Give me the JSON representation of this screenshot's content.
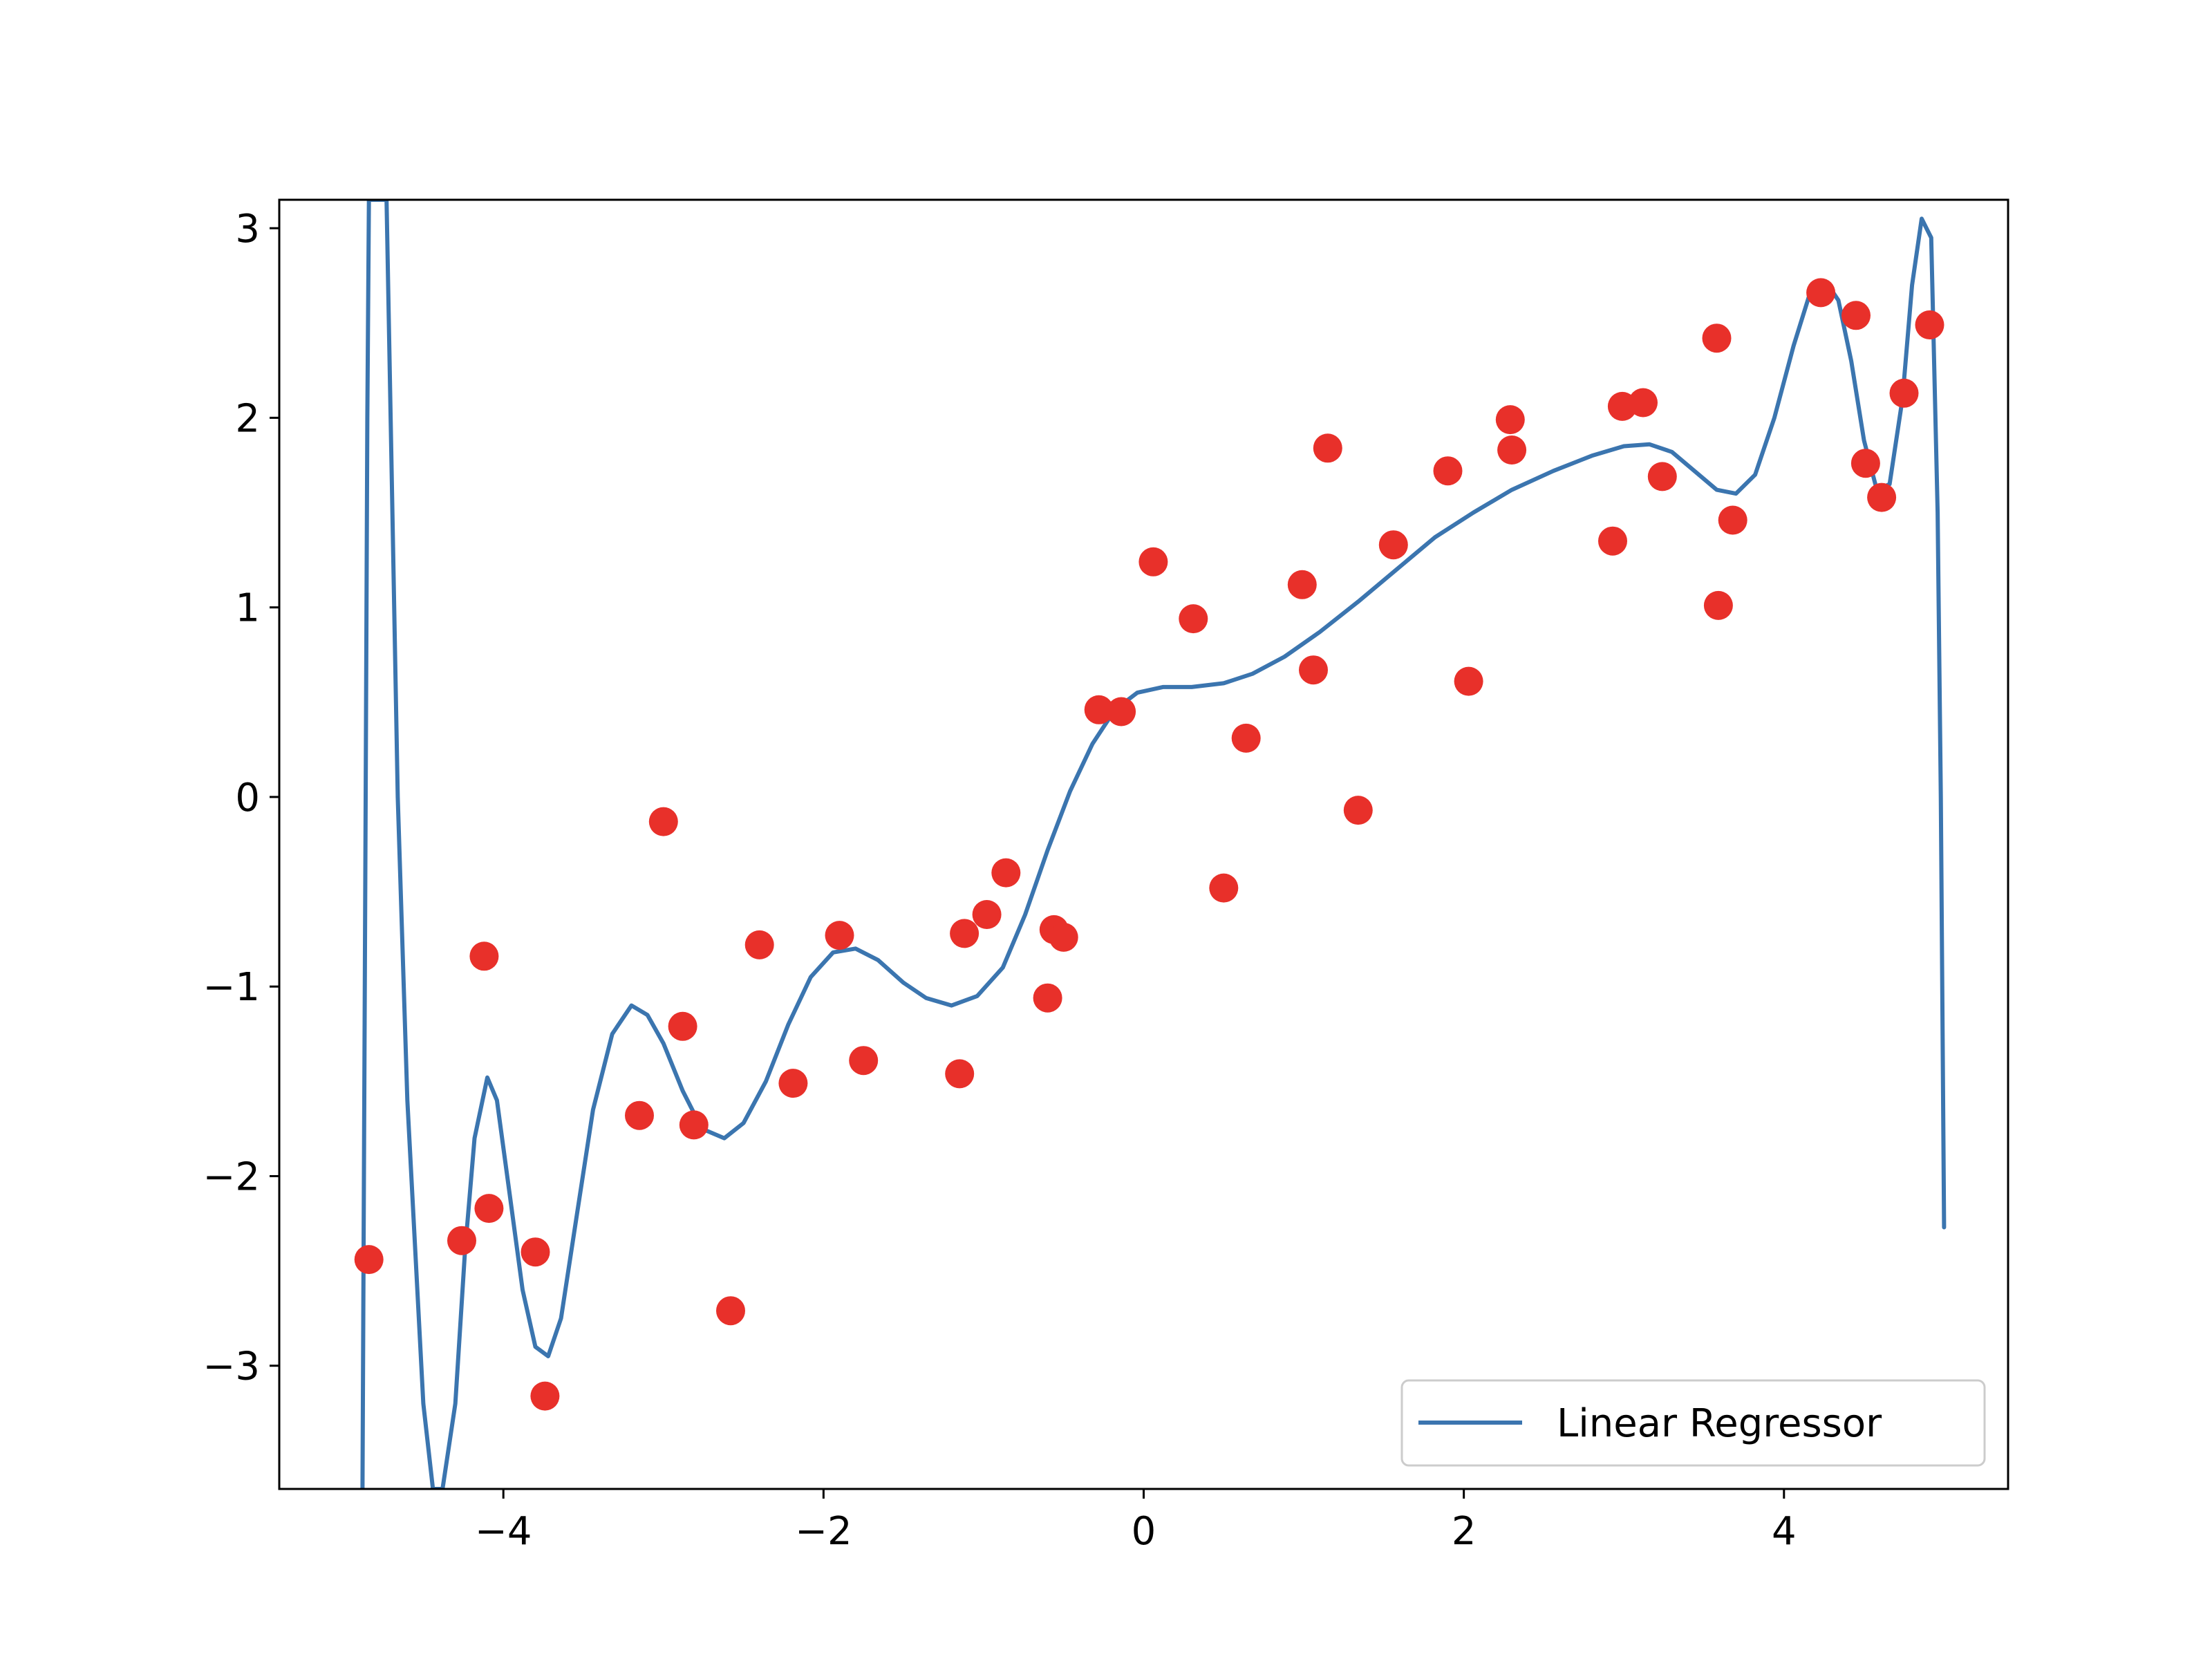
{
  "chart_data": {
    "type": "scatter",
    "title": "",
    "xlabel": "",
    "ylabel": "",
    "xlim": [
      -5.4,
      5.4
    ],
    "ylim": [
      -3.65,
      3.15
    ],
    "grid": false,
    "legend_position": "lower-right",
    "xticks": [
      {
        "value": -4,
        "label": "−4"
      },
      {
        "value": -2,
        "label": "−2"
      },
      {
        "value": 0,
        "label": "0"
      },
      {
        "value": 2,
        "label": "2"
      },
      {
        "value": 4,
        "label": "4"
      }
    ],
    "yticks": [
      {
        "value": 3,
        "label": "3"
      },
      {
        "value": 2,
        "label": "2"
      },
      {
        "value": 1,
        "label": "1"
      },
      {
        "value": 0,
        "label": "0"
      },
      {
        "value": -1,
        "label": "−1"
      },
      {
        "value": -2,
        "label": "−2"
      },
      {
        "value": -3,
        "label": "−3"
      }
    ],
    "series": [
      {
        "name": "Linear Regressor",
        "type": "line",
        "color": "#3b75af",
        "points": [
          [
            -4.88,
            -3.65
          ],
          [
            -4.86,
            0.0
          ],
          [
            -4.85,
            2.0
          ],
          [
            -4.84,
            3.15
          ],
          [
            -4.73,
            3.15
          ],
          [
            -4.66,
            0.0
          ],
          [
            -4.6,
            -1.6
          ],
          [
            -4.5,
            -3.2
          ],
          [
            -4.44,
            -3.65
          ],
          [
            -4.38,
            -3.65
          ],
          [
            -4.3,
            -3.2
          ],
          [
            -4.24,
            -2.4
          ],
          [
            -4.18,
            -1.8
          ],
          [
            -4.1,
            -1.48
          ],
          [
            -4.04,
            -1.6
          ],
          [
            -3.96,
            -2.1
          ],
          [
            -3.88,
            -2.6
          ],
          [
            -3.8,
            -2.9
          ],
          [
            -3.72,
            -2.95
          ],
          [
            -3.64,
            -2.75
          ],
          [
            -3.54,
            -2.2
          ],
          [
            -3.44,
            -1.65
          ],
          [
            -3.32,
            -1.25
          ],
          [
            -3.2,
            -1.1
          ],
          [
            -3.1,
            -1.15
          ],
          [
            -3.0,
            -1.3
          ],
          [
            -2.88,
            -1.55
          ],
          [
            -2.76,
            -1.75
          ],
          [
            -2.62,
            -1.8
          ],
          [
            -2.5,
            -1.72
          ],
          [
            -2.36,
            -1.5
          ],
          [
            -2.22,
            -1.2
          ],
          [
            -2.08,
            -0.95
          ],
          [
            -1.94,
            -0.82
          ],
          [
            -1.8,
            -0.8
          ],
          [
            -1.66,
            -0.86
          ],
          [
            -1.5,
            -0.98
          ],
          [
            -1.36,
            -1.06
          ],
          [
            -1.2,
            -1.1
          ],
          [
            -1.04,
            -1.05
          ],
          [
            -0.88,
            -0.9
          ],
          [
            -0.74,
            -0.62
          ],
          [
            -0.6,
            -0.28
          ],
          [
            -0.46,
            0.03
          ],
          [
            -0.32,
            0.28
          ],
          [
            -0.18,
            0.46
          ],
          [
            -0.04,
            0.55
          ],
          [
            0.12,
            0.58
          ],
          [
            0.3,
            0.58
          ],
          [
            0.5,
            0.6
          ],
          [
            0.68,
            0.65
          ],
          [
            0.88,
            0.74
          ],
          [
            1.1,
            0.87
          ],
          [
            1.34,
            1.03
          ],
          [
            1.58,
            1.2
          ],
          [
            1.82,
            1.37
          ],
          [
            2.06,
            1.5
          ],
          [
            2.3,
            1.62
          ],
          [
            2.56,
            1.72
          ],
          [
            2.8,
            1.8
          ],
          [
            3.0,
            1.85
          ],
          [
            3.16,
            1.86
          ],
          [
            3.3,
            1.82
          ],
          [
            3.44,
            1.72
          ],
          [
            3.58,
            1.62
          ],
          [
            3.7,
            1.6
          ],
          [
            3.82,
            1.7
          ],
          [
            3.94,
            2.0
          ],
          [
            4.06,
            2.38
          ],
          [
            4.16,
            2.65
          ],
          [
            4.26,
            2.72
          ],
          [
            4.34,
            2.62
          ],
          [
            4.42,
            2.3
          ],
          [
            4.5,
            1.88
          ],
          [
            4.58,
            1.62
          ],
          [
            4.66,
            1.65
          ],
          [
            4.74,
            2.1
          ],
          [
            4.8,
            2.7
          ],
          [
            4.86,
            3.05
          ],
          [
            4.92,
            2.95
          ],
          [
            4.96,
            1.5
          ],
          [
            4.98,
            0.0
          ],
          [
            5.0,
            -2.27
          ]
        ]
      },
      {
        "name": "",
        "type": "scatter",
        "color": "#e8302a",
        "points": [
          [
            -4.84,
            -2.44
          ],
          [
            -4.26,
            -2.34
          ],
          [
            -4.12,
            -0.84
          ],
          [
            -4.09,
            -2.17
          ],
          [
            -3.8,
            -2.4
          ],
          [
            -3.74,
            -3.16
          ],
          [
            -3.15,
            -1.68
          ],
          [
            -3.0,
            -0.13
          ],
          [
            -2.88,
            -1.21
          ],
          [
            -2.81,
            -1.73
          ],
          [
            -2.58,
            -2.71
          ],
          [
            -2.4,
            -0.78
          ],
          [
            -2.19,
            -1.51
          ],
          [
            -1.9,
            -0.73
          ],
          [
            -1.75,
            -1.39
          ],
          [
            -1.15,
            -1.46
          ],
          [
            -1.12,
            -0.72
          ],
          [
            -0.98,
            -0.62
          ],
          [
            -0.86,
            -0.4
          ],
          [
            -0.6,
            -1.06
          ],
          [
            -0.56,
            -0.7
          ],
          [
            -0.5,
            -0.74
          ],
          [
            -0.28,
            0.46
          ],
          [
            -0.14,
            0.45
          ],
          [
            0.06,
            1.24
          ],
          [
            0.31,
            0.94
          ],
          [
            0.5,
            -0.48
          ],
          [
            0.64,
            0.31
          ],
          [
            0.99,
            1.12
          ],
          [
            1.06,
            0.67
          ],
          [
            1.15,
            1.84
          ],
          [
            1.34,
            -0.07
          ],
          [
            1.56,
            1.33
          ],
          [
            1.9,
            1.72
          ],
          [
            2.03,
            0.61
          ],
          [
            2.29,
            1.99
          ],
          [
            2.3,
            1.83
          ],
          [
            2.93,
            1.35
          ],
          [
            2.99,
            2.06
          ],
          [
            3.12,
            2.08
          ],
          [
            3.24,
            1.69
          ],
          [
            3.58,
            2.42
          ],
          [
            3.59,
            1.01
          ],
          [
            3.68,
            1.46
          ],
          [
            4.23,
            2.66
          ],
          [
            4.45,
            2.54
          ],
          [
            4.51,
            1.76
          ],
          [
            4.61,
            1.58
          ],
          [
            4.75,
            2.13
          ],
          [
            4.91,
            2.49
          ]
        ]
      }
    ],
    "legend": {
      "entries": [
        {
          "label": "Linear Regressor",
          "color": "#3b75af"
        }
      ]
    }
  }
}
